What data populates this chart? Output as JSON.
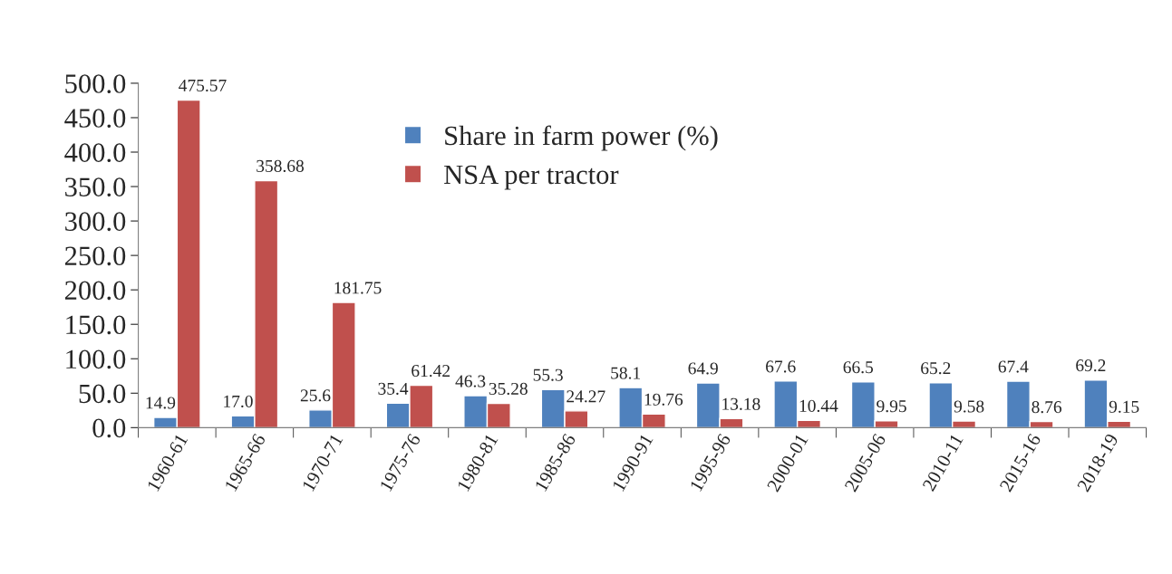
{
  "chart_data": {
    "type": "bar",
    "categories": [
      "1960-61",
      "1965-66",
      "1970-71",
      "1975-76",
      "1980-81",
      "1985-86",
      "1990-91",
      "1995-96",
      "2000-01",
      "2005-06",
      "2010-11",
      "2015-16",
      "2018-19"
    ],
    "series": [
      {
        "name": "Share in farm power (%)",
        "color": "#4f81bd",
        "values": [
          14.9,
          17.0,
          25.6,
          35.4,
          46.3,
          55.3,
          58.1,
          64.9,
          67.6,
          66.5,
          65.2,
          67.4,
          69.2
        ],
        "value_labels": [
          "14.9",
          "17.0",
          "25.6",
          "35.4",
          "46.3",
          "55.3",
          "58.1",
          "64.9",
          "67.6",
          "66.5",
          "65.2",
          "67.4",
          "69.2"
        ]
      },
      {
        "name": "NSA per tractor",
        "color": "#c0504d",
        "values": [
          475.57,
          358.68,
          181.75,
          61.42,
          35.28,
          24.27,
          19.76,
          13.18,
          10.44,
          9.95,
          9.58,
          8.76,
          9.15
        ],
        "value_labels": [
          "475.57",
          "358.68",
          "181.75",
          "61.42",
          "35.28",
          "24.27",
          "19.76",
          "13.18",
          "10.44",
          "9.95",
          "9.58",
          "8.76",
          "9.15"
        ]
      }
    ],
    "ylim": [
      0,
      500
    ],
    "yticks": [
      {
        "value": 0,
        "label": "0.0"
      },
      {
        "value": 50,
        "label": "50.0"
      },
      {
        "value": 100,
        "label": "100.0"
      },
      {
        "value": 150,
        "label": "150.0"
      },
      {
        "value": 200,
        "label": "200.0"
      },
      {
        "value": 250,
        "label": "250.0"
      },
      {
        "value": 300,
        "label": "300.0"
      },
      {
        "value": 350,
        "label": "350.0"
      },
      {
        "value": 400,
        "label": "400.0"
      },
      {
        "value": 450,
        "label": "450.0"
      },
      {
        "value": 500,
        "label": "500.0"
      }
    ],
    "legend": "top",
    "grid": false
  }
}
